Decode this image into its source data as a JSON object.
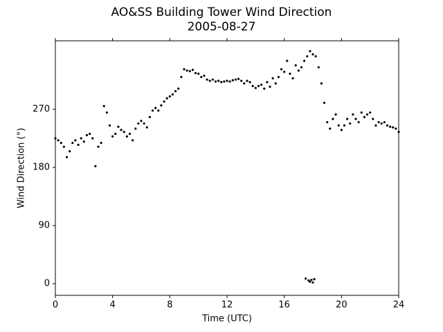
{
  "chart_data": {
    "type": "scatter",
    "title": "AO&SS Building Tower Wind Direction",
    "subtitle": "2005-08-27",
    "x_label": "Time (UTC)",
    "y_label": "Wind Direction (°)",
    "color": "#000000",
    "xlim": [
      0,
      24
    ],
    "xticks": [
      0,
      4,
      8,
      12,
      16,
      20,
      24
    ],
    "ylim": [
      -18,
      376
    ],
    "yticks": [
      0,
      90,
      180,
      270
    ],
    "x": [
      0,
      0.2,
      0.4,
      0.6,
      0.8,
      1.0,
      1.2,
      1.4,
      1.6,
      1.8,
      2.0,
      2.2,
      2.4,
      2.6,
      2.8,
      3.0,
      3.2,
      3.4,
      3.6,
      3.8,
      4.0,
      4.2,
      4.4,
      4.6,
      4.8,
      5.0,
      5.2,
      5.4,
      5.6,
      5.8,
      6.0,
      6.2,
      6.4,
      6.6,
      6.8,
      7.0,
      7.2,
      7.4,
      7.6,
      7.8,
      8.0,
      8.2,
      8.4,
      8.6,
      8.8,
      9.0,
      9.2,
      9.4,
      9.6,
      9.8,
      10.0,
      10.2,
      10.4,
      10.6,
      10.8,
      11.0,
      11.2,
      11.4,
      11.6,
      11.8,
      12.0,
      12.2,
      12.4,
      12.6,
      12.8,
      13.0,
      13.2,
      13.4,
      13.6,
      13.8,
      14.0,
      14.2,
      14.4,
      14.6,
      14.8,
      15.0,
      15.2,
      15.4,
      15.6,
      15.8,
      16.0,
      16.2,
      16.4,
      16.6,
      16.8,
      17.0,
      17.2,
      17.4,
      17.6,
      17.8,
      18.0,
      18.2,
      18.4,
      18.6,
      18.8,
      19.0,
      19.2,
      19.4,
      19.6,
      19.8,
      20.0,
      20.2,
      20.4,
      20.6,
      20.8,
      21.0,
      21.2,
      21.4,
      21.6,
      21.8,
      22.0,
      22.2,
      22.4,
      22.6,
      22.8,
      23.0,
      23.2,
      23.4,
      23.6,
      23.8,
      24.0,
      17.5,
      17.7,
      17.8,
      17.9,
      18.0,
      18.1
    ],
    "values": [
      225,
      222,
      218,
      212,
      196,
      205,
      218,
      222,
      215,
      225,
      220,
      230,
      232,
      225,
      182,
      212,
      218,
      275,
      265,
      245,
      228,
      232,
      243,
      238,
      235,
      228,
      232,
      222,
      240,
      248,
      252,
      248,
      242,
      258,
      268,
      272,
      268,
      276,
      282,
      287,
      290,
      293,
      298,
      302,
      320,
      332,
      330,
      329,
      331,
      326,
      325,
      320,
      322,
      316,
      314,
      316,
      313,
      314,
      312,
      313,
      314,
      313,
      315,
      316,
      317,
      314,
      310,
      314,
      312,
      306,
      303,
      306,
      308,
      302,
      312,
      305,
      318,
      310,
      320,
      332,
      328,
      345,
      325,
      318,
      338,
      330,
      335,
      345,
      352,
      360,
      355,
      352,
      335,
      310,
      280,
      250,
      240,
      255,
      262,
      245,
      238,
      245,
      255,
      248,
      262,
      255,
      250,
      265,
      258,
      262,
      265,
      255,
      245,
      250,
      248,
      250,
      245,
      243,
      242,
      240,
      235,
      8,
      5,
      3,
      6,
      2,
      7
    ]
  }
}
